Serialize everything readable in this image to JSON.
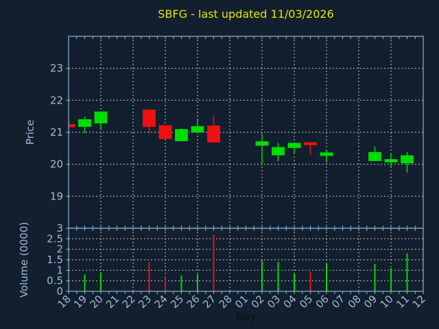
{
  "title": {
    "text": "SBFG - last updated 11/03/2026"
  },
  "colors": {
    "background": "#121f2e",
    "spine": "#8fb2d6",
    "tick_label": "#a2bad6",
    "title": "#e8e600",
    "xlabel_text": "#0b1018",
    "grid": "#c8c8c8",
    "up": "#00dd00",
    "down": "#ee1111"
  },
  "chart_data": {
    "type": "candlestick",
    "title": "SBFG - last updated 11/03/2026",
    "xlabel": "Day",
    "x_categories": [
      "18",
      "19",
      "20",
      "21",
      "22",
      "23",
      "24",
      "25",
      "26",
      "27",
      "28",
      "01",
      "02",
      "03",
      "04",
      "05",
      "06",
      "07",
      "08",
      "09",
      "10",
      "11",
      "12"
    ],
    "x_gridline_categories": [
      "18",
      "20",
      "22",
      "24",
      "26",
      "28",
      "02",
      "04",
      "06",
      "08",
      "10",
      "12"
    ],
    "price_panel": {
      "ylabel": "Price",
      "ylim": [
        18,
        24
      ],
      "yticks": [
        19,
        20,
        21,
        22,
        23
      ],
      "grid": "dashed"
    },
    "volume_panel": {
      "ylabel": "Volume (0000)",
      "ylim": [
        0,
        3
      ],
      "yticks": [
        0,
        0.5,
        1,
        1.5,
        2,
        2.5,
        3
      ],
      "grid": "dashed"
    },
    "legend": "none",
    "candles": [
      {
        "day": "18",
        "open": 21.26,
        "high": 21.26,
        "low": 21.16,
        "close": 21.16,
        "volume": null
      },
      {
        "day": "19",
        "open": 21.17,
        "high": 21.49,
        "low": 20.97,
        "close": 21.41,
        "volume": 0.8
      },
      {
        "day": "20",
        "open": 21.28,
        "high": 21.65,
        "low": 21.1,
        "close": 21.65,
        "volume": 0.9
      },
      {
        "day": "23",
        "open": 21.71,
        "high": 21.71,
        "low": 20.97,
        "close": 21.17,
        "volume": 1.4
      },
      {
        "day": "24",
        "open": 21.22,
        "high": 21.22,
        "low": 20.79,
        "close": 20.79,
        "volume": 0.7
      },
      {
        "day": "25",
        "open": 20.72,
        "high": 21.12,
        "low": 20.72,
        "close": 21.1,
        "volume": 0.75
      },
      {
        "day": "26",
        "open": 20.99,
        "high": 21.39,
        "low": 20.99,
        "close": 21.19,
        "volume": 0.8
      },
      {
        "day": "27",
        "open": 21.21,
        "high": 21.53,
        "low": 20.68,
        "close": 20.68,
        "volume": 2.7
      },
      {
        "day": "02",
        "open": 20.58,
        "high": 20.94,
        "low": 20.0,
        "close": 20.72,
        "volume": 1.45
      },
      {
        "day": "03",
        "open": 20.28,
        "high": 20.67,
        "low": 20.1,
        "close": 20.54,
        "volume": 1.4
      },
      {
        "day": "04",
        "open": 20.51,
        "high": 20.67,
        "low": 20.33,
        "close": 20.67,
        "volume": 0.85
      },
      {
        "day": "05",
        "open": 20.69,
        "high": 20.69,
        "low": 20.28,
        "close": 20.6,
        "volume": 0.95
      },
      {
        "day": "06",
        "open": 20.26,
        "high": 20.45,
        "low": 20.06,
        "close": 20.37,
        "volume": 1.3
      },
      {
        "day": "09",
        "open": 20.1,
        "high": 20.56,
        "low": 20.1,
        "close": 20.38,
        "volume": 1.3
      },
      {
        "day": "10",
        "open": 20.06,
        "high": 20.35,
        "low": 19.92,
        "close": 20.16,
        "volume": 1.1
      },
      {
        "day": "11",
        "open": 20.03,
        "high": 20.38,
        "low": 19.74,
        "close": 20.28,
        "volume": 1.8
      }
    ]
  }
}
